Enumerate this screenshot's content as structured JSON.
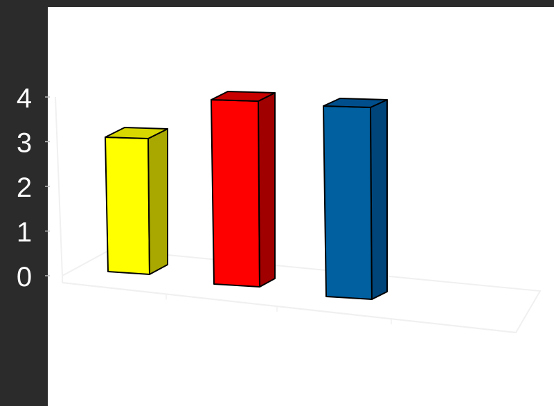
{
  "chart_data": {
    "type": "bar",
    "style": "3d",
    "categories": [
      "",
      "",
      ""
    ],
    "values": [
      3,
      4,
      4
    ],
    "colors": [
      "#ffff00",
      "#ff0000",
      "#0060a0"
    ],
    "side_colors": [
      "#a8a800",
      "#a00000",
      "#00457a"
    ],
    "top_colors": [
      "#d8d800",
      "#c80000",
      "#004f8c"
    ],
    "ylim": [
      0,
      4
    ],
    "yticks": [
      "0",
      "1",
      "2",
      "3",
      "4"
    ],
    "grid": false,
    "legend": "none",
    "background": "#2b2b2b",
    "plot_background": "#ffffff",
    "axis_color": "#f0f0f0",
    "tick_label_color": "#ffffff"
  }
}
